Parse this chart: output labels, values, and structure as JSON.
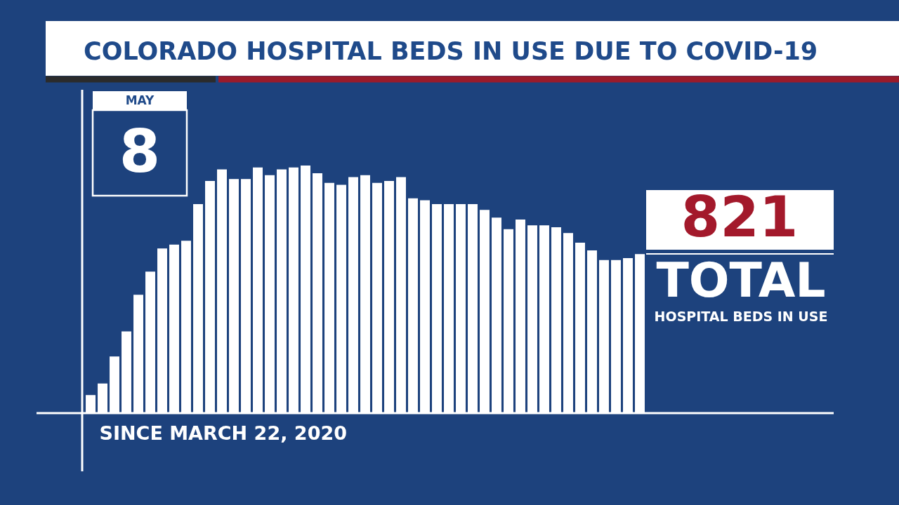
{
  "chart_data": {
    "type": "bar",
    "title": "COLORADO HOSPITAL BEDS IN USE DUE TO COVID-19",
    "xlabel": "SINCE MARCH 22, 2020",
    "categories": [
      null,
      null,
      null,
      null,
      null,
      null,
      null,
      null,
      null,
      null,
      null,
      null,
      null,
      null,
      null,
      null,
      null,
      null,
      null,
      null,
      null,
      null,
      null,
      null,
      null,
      null,
      null,
      null,
      null,
      null,
      null,
      null,
      null,
      null,
      null,
      null,
      null,
      null,
      null,
      null,
      null,
      null,
      null,
      null,
      null,
      null,
      null
    ],
    "values": [
      90,
      150,
      290,
      420,
      610,
      730,
      850,
      870,
      890,
      1080,
      1200,
      1260,
      1210,
      1210,
      1270,
      1230,
      1260,
      1270,
      1280,
      1240,
      1190,
      1180,
      1220,
      1230,
      1190,
      1200,
      1220,
      1110,
      1100,
      1080,
      1080,
      1080,
      1080,
      1050,
      1010,
      950,
      1000,
      970,
      970,
      960,
      930,
      880,
      840,
      790,
      790,
      800,
      821
    ],
    "value_labels": [
      null,
      null,
      null,
      null,
      null,
      null,
      null,
      null,
      null,
      null,
      null,
      null,
      null,
      null,
      null,
      null,
      null,
      null,
      null,
      null,
      null,
      null,
      null,
      null,
      null,
      null,
      null,
      null,
      null,
      null,
      null,
      null,
      null,
      null,
      null,
      null,
      null,
      null,
      null,
      null,
      null,
      null,
      null,
      null,
      null,
      null,
      "821"
    ],
    "color": "#ffffff",
    "tick_labels": false,
    "annotations": [
      "MAY",
      "8",
      "TOTAL",
      "HOSPITAL BEDS IN USE"
    ]
  }
}
